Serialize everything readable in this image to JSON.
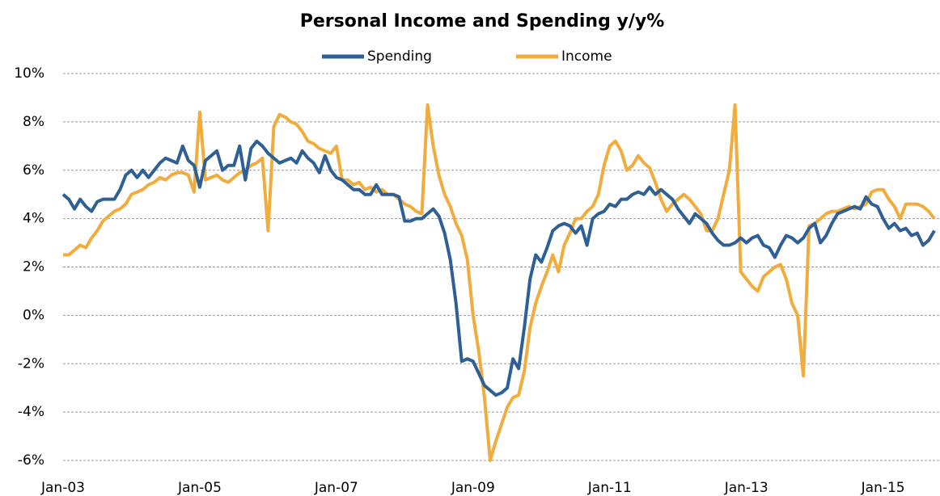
{
  "chart_data": {
    "type": "line",
    "title": "Personal Income and Spending y/y%",
    "categories": [
      "Jan-03",
      null,
      null,
      null,
      null,
      null,
      null,
      null,
      null,
      null,
      null,
      null,
      null,
      null,
      null,
      null,
      null,
      null,
      null,
      null,
      null,
      null,
      null,
      null,
      "Jan-05",
      null,
      null,
      null,
      null,
      null,
      null,
      null,
      null,
      null,
      null,
      null,
      null,
      null,
      null,
      null,
      null,
      null,
      null,
      null,
      null,
      null,
      null,
      null,
      "Jan-07",
      null,
      null,
      null,
      null,
      null,
      null,
      null,
      null,
      null,
      null,
      null,
      null,
      null,
      null,
      null,
      null,
      null,
      null,
      null,
      null,
      null,
      null,
      null,
      "Jan-09",
      null,
      null,
      null,
      null,
      null,
      null,
      null,
      null,
      null,
      null,
      null,
      null,
      null,
      null,
      null,
      null,
      null,
      null,
      null,
      null,
      null,
      null,
      null,
      "Jan-11",
      null,
      null,
      null,
      null,
      null,
      null,
      null,
      null,
      null,
      null,
      null,
      null,
      null,
      null,
      null,
      null,
      null,
      null,
      null,
      null,
      null,
      null,
      null,
      "Jan-13",
      null,
      null,
      null,
      null,
      null,
      null,
      null,
      null,
      null,
      null,
      null,
      null,
      null,
      null,
      null,
      null,
      null,
      null,
      null,
      null,
      null,
      null,
      null,
      "Jan-15",
      null,
      null,
      null,
      null,
      null,
      null,
      null,
      null,
      null
    ],
    "series": [
      {
        "name": "Spending",
        "color": "#2e5f95",
        "values": [
          5.0,
          4.8,
          4.4,
          4.8,
          4.5,
          4.3,
          4.7,
          4.8,
          4.8,
          4.8,
          5.2,
          5.8,
          6.0,
          5.7,
          6.0,
          5.7,
          6.0,
          6.3,
          6.5,
          6.4,
          6.3,
          7.0,
          6.4,
          6.2,
          5.3,
          6.4,
          6.6,
          6.8,
          6.0,
          6.2,
          6.2,
          7.0,
          5.6,
          6.9,
          7.2,
          7.0,
          6.7,
          6.5,
          6.3,
          6.4,
          6.5,
          6.3,
          6.8,
          6.5,
          6.3,
          5.9,
          6.6,
          6.0,
          5.7,
          5.6,
          5.4,
          5.2,
          5.2,
          5.0,
          5.0,
          5.4,
          5.0,
          5.0,
          5.0,
          4.9,
          3.9,
          3.9,
          4.0,
          4.0,
          4.2,
          4.4,
          4.1,
          3.4,
          2.3,
          0.5,
          -1.9,
          -1.8,
          -1.9,
          -2.4,
          -2.9,
          -3.1,
          -3.3,
          -3.2,
          -3.0,
          -1.8,
          -2.2,
          -0.5,
          1.5,
          2.5,
          2.2,
          2.8,
          3.5,
          3.7,
          3.8,
          3.7,
          3.4,
          3.7,
          2.9,
          4.0,
          4.2,
          4.3,
          4.6,
          4.5,
          4.8,
          4.8,
          5.0,
          5.1,
          5.0,
          5.3,
          5.0,
          5.2,
          5.0,
          4.8,
          4.4,
          4.1,
          3.8,
          4.2,
          4.0,
          3.8,
          3.4,
          3.1,
          2.9,
          2.9,
          3.0,
          3.2,
          3.0,
          3.2,
          3.3,
          2.9,
          2.8,
          2.4,
          2.9,
          3.3,
          3.2,
          3.0,
          3.2,
          3.6,
          3.8,
          3.0,
          3.3,
          3.8,
          4.2,
          4.3,
          4.4,
          4.5,
          4.4,
          4.9,
          4.6,
          4.5,
          4.0,
          3.6,
          3.8,
          3.5,
          3.6,
          3.3,
          3.4,
          2.9,
          3.1,
          3.5
        ]
      },
      {
        "name": "Income",
        "color": "#f0ac3c",
        "values": [
          2.5,
          2.5,
          2.7,
          2.9,
          2.8,
          3.2,
          3.5,
          3.9,
          4.1,
          4.3,
          4.4,
          4.6,
          5.0,
          5.1,
          5.2,
          5.4,
          5.5,
          5.7,
          5.6,
          5.8,
          5.9,
          5.9,
          5.8,
          5.1,
          8.4,
          5.6,
          5.7,
          5.8,
          5.6,
          5.5,
          5.7,
          5.9,
          6.0,
          6.2,
          6.3,
          6.5,
          3.5,
          7.8,
          8.3,
          8.2,
          8.0,
          7.9,
          7.6,
          7.2,
          7.1,
          6.9,
          6.8,
          6.7,
          7.0,
          5.6,
          5.6,
          5.4,
          5.5,
          5.2,
          5.3,
          5.1,
          5.2,
          5.0,
          5.0,
          4.8,
          4.6,
          4.5,
          4.3,
          4.2,
          8.7,
          7.0,
          5.8,
          5.0,
          4.5,
          3.8,
          3.3,
          2.3,
          0.0,
          -1.5,
          -3.4,
          -6.0,
          -5.2,
          -4.5,
          -3.8,
          -3.4,
          -3.3,
          -2.3,
          -0.5,
          0.5,
          1.2,
          1.8,
          2.5,
          1.8,
          2.9,
          3.4,
          4.0,
          4.0,
          4.3,
          4.5,
          5.0,
          6.2,
          7.0,
          7.2,
          6.8,
          6.0,
          6.2,
          6.6,
          6.3,
          6.1,
          5.5,
          4.8,
          4.3,
          4.6,
          4.8,
          5.0,
          4.8,
          4.5,
          4.2,
          3.5,
          3.5,
          4.0,
          5.0,
          6.0,
          8.7,
          1.8,
          1.5,
          1.2,
          1.0,
          1.6,
          1.8,
          2.0,
          2.1,
          1.5,
          0.5,
          0.0,
          -2.5,
          3.7,
          3.8,
          4.0,
          4.2,
          4.3,
          4.3,
          4.4,
          4.5,
          4.4,
          4.5,
          4.6,
          5.1,
          5.2,
          5.2,
          4.8,
          4.5,
          4.0,
          4.6,
          4.6,
          4.6,
          4.5,
          4.3,
          4.0
        ]
      }
    ],
    "ylim": [
      -6,
      10
    ],
    "yticks": [
      {
        "value": -6,
        "label": "-6%"
      },
      {
        "value": -4,
        "label": "-4%"
      },
      {
        "value": -2,
        "label": "-2%"
      },
      {
        "value": 0,
        "label": "0%"
      },
      {
        "value": 2,
        "label": "2%"
      },
      {
        "value": 4,
        "label": "4%"
      },
      {
        "value": 6,
        "label": "6%"
      },
      {
        "value": 8,
        "label": "8%"
      },
      {
        "value": 10,
        "label": "10%"
      }
    ],
    "negative_tick_color": "#ff0000",
    "grid": true,
    "legend": "top"
  }
}
